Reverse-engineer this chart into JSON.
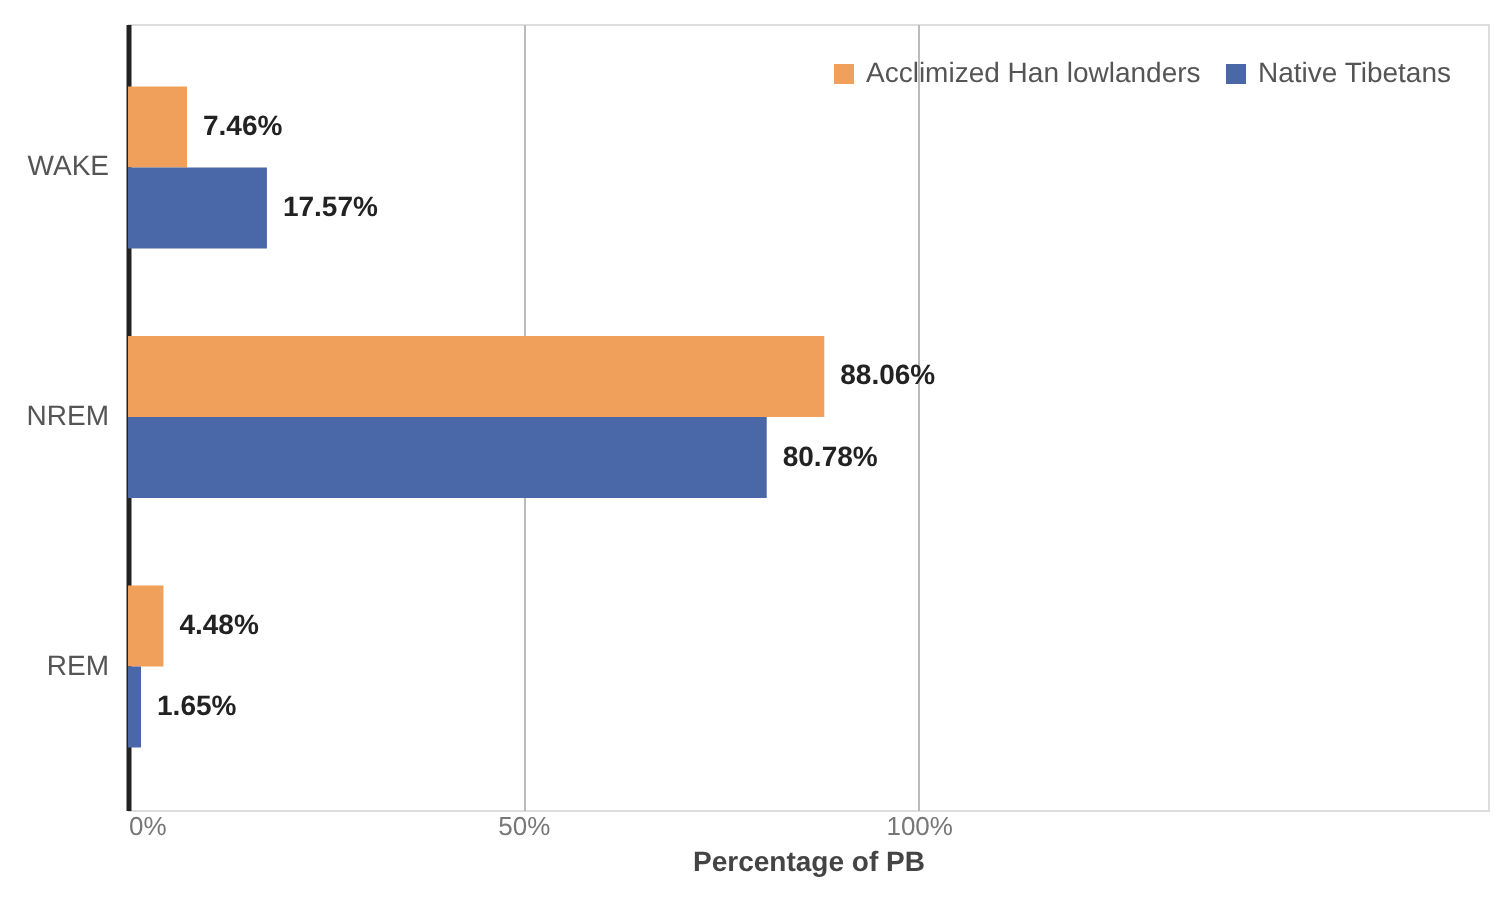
{
  "chart_data": {
    "type": "bar",
    "orientation": "horizontal",
    "xlabel": "Percentage of PB",
    "categories": [
      "WAKE",
      "NREM",
      "REM"
    ],
    "series": [
      {
        "name": "Acclimized Han lowlanders",
        "color": "#f0a05a",
        "values": [
          7.46,
          88.06,
          4.48
        ],
        "value_labels": [
          "7.46%",
          "88.06%",
          "4.48%"
        ]
      },
      {
        "name": "Native Tibetans",
        "color": "#4a68a8",
        "values": [
          17.57,
          80.78,
          1.65
        ],
        "value_labels": [
          "17.57%",
          "80.78%",
          "1.65%"
        ]
      }
    ],
    "xlim": [
      0,
      172
    ],
    "xticks": [
      {
        "value": 0,
        "label": "0%"
      },
      {
        "value": 50,
        "label": "50%"
      },
      {
        "value": 100,
        "label": "100%"
      }
    ],
    "grid": "x",
    "legend": "top right"
  }
}
